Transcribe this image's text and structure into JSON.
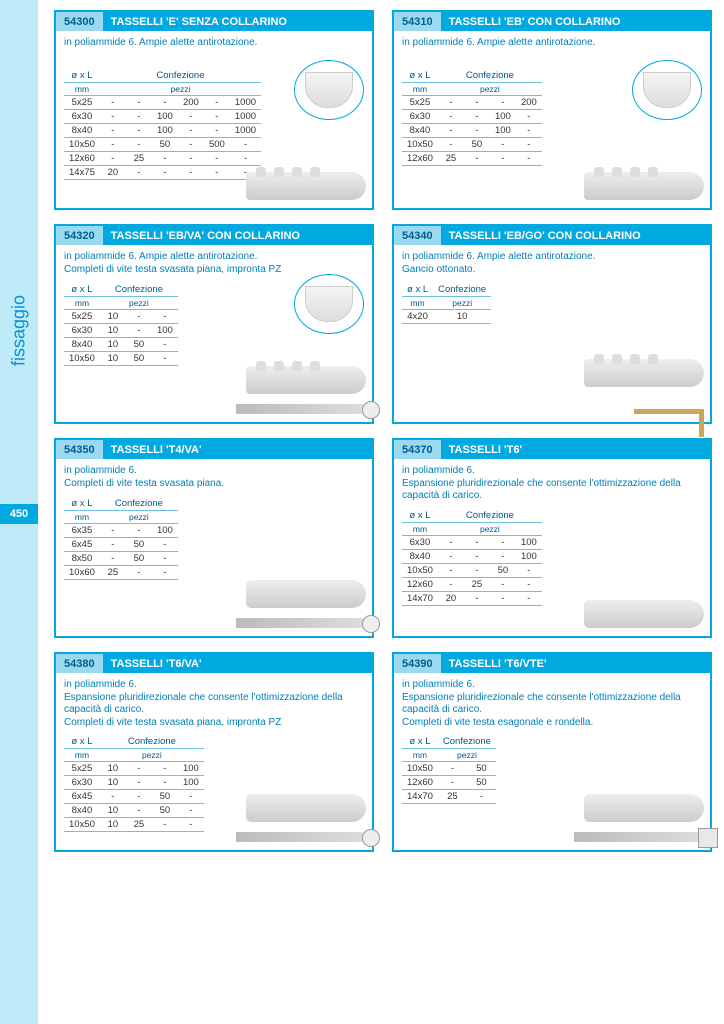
{
  "sidebar": {
    "label": "fissaggio",
    "page_number": "450"
  },
  "colors": {
    "accent": "#00a9e0",
    "panel": "#bfeaf7",
    "text_accent": "#0080b8",
    "border": "#6fbfe0"
  },
  "typography": {
    "body_fontsize": 10,
    "header_fontsize": 11,
    "table_fontsize": 9.5
  },
  "common": {
    "size_header": "ø x L",
    "size_unit": "mm",
    "pack_header": "Confezione",
    "pack_unit": "pezzi"
  },
  "cards": [
    {
      "code": "54300",
      "title": "TASSELLI 'E' SENZA COLLARINO",
      "desc": "in poliammide 6. Ampie alette antirotazione.",
      "pack_cols": 6,
      "rows": [
        {
          "s": "5x25",
          "v": [
            "-",
            "-",
            "-",
            "200",
            "-",
            "1000"
          ]
        },
        {
          "s": "6x30",
          "v": [
            "-",
            "-",
            "100",
            "-",
            "-",
            "1000"
          ]
        },
        {
          "s": "8x40",
          "v": [
            "-",
            "-",
            "100",
            "-",
            "-",
            "1000"
          ]
        },
        {
          "s": "10x50",
          "v": [
            "-",
            "-",
            "50",
            "-",
            "500",
            "-"
          ]
        },
        {
          "s": "12x60",
          "v": [
            "-",
            "25",
            "-",
            "-",
            "-",
            "-"
          ]
        },
        {
          "s": "14x75",
          "v": [
            "20",
            "-",
            "-",
            "-",
            "-",
            "-"
          ]
        }
      ],
      "show_bowl": true,
      "show_plug": true,
      "show_screw": false,
      "show_hook": false
    },
    {
      "code": "54310",
      "title": "TASSELLI 'EB' CON COLLARINO",
      "desc": "in poliammide 6. Ampie alette antirotazione.",
      "pack_cols": 4,
      "rows": [
        {
          "s": "5x25",
          "v": [
            "-",
            "-",
            "-",
            "200"
          ]
        },
        {
          "s": "6x30",
          "v": [
            "-",
            "-",
            "100",
            "-"
          ]
        },
        {
          "s": "8x40",
          "v": [
            "-",
            "-",
            "100",
            "-"
          ]
        },
        {
          "s": "10x50",
          "v": [
            "-",
            "50",
            "-",
            "-"
          ]
        },
        {
          "s": "12x60",
          "v": [
            "25",
            "-",
            "-",
            "-"
          ]
        }
      ],
      "show_bowl": true,
      "show_plug": true,
      "show_screw": false,
      "show_hook": false
    },
    {
      "code": "54320",
      "title": "TASSELLI 'EB/VA' CON COLLARINO",
      "desc": "in poliammide 6. Ampie alette antirotazione.\nCompleti di vite testa svasata piana, impronta PZ",
      "pack_cols": 3,
      "rows": [
        {
          "s": "5x25",
          "v": [
            "10",
            "-",
            "-"
          ]
        },
        {
          "s": "6x30",
          "v": [
            "10",
            "-",
            "100"
          ]
        },
        {
          "s": "8x40",
          "v": [
            "10",
            "50",
            "-"
          ]
        },
        {
          "s": "10x50",
          "v": [
            "10",
            "50",
            "-"
          ]
        }
      ],
      "show_bowl": true,
      "show_plug": true,
      "show_screw": true,
      "show_hook": false
    },
    {
      "code": "54340",
      "title": "TASSELLI 'EB/GO' CON COLLARINO",
      "desc": "in poliammide 6. Ampie alette antirotazione.\nGancio ottonato.",
      "pack_cols": 1,
      "rows": [
        {
          "s": "4x20",
          "v": [
            "10"
          ]
        }
      ],
      "show_bowl": false,
      "show_plug": true,
      "show_screw": false,
      "show_hook": true
    },
    {
      "code": "54350",
      "title": "TASSELLI 'T4/VA'",
      "desc": "in poliammide 6.\nCompleti di vite testa svasata piana.",
      "pack_cols": 3,
      "rows": [
        {
          "s": "6x35",
          "v": [
            "-",
            "-",
            "100"
          ]
        },
        {
          "s": "6x45",
          "v": [
            "-",
            "50",
            "-"
          ]
        },
        {
          "s": "8x50",
          "v": [
            "-",
            "50",
            "-"
          ]
        },
        {
          "s": "10x60",
          "v": [
            "25",
            "-",
            "-"
          ]
        }
      ],
      "show_bowl": false,
      "show_plug": true,
      "plug_type": "T",
      "show_screw": true,
      "show_hook": false
    },
    {
      "code": "54370",
      "title": "TASSELLI 'T6'",
      "desc": "in poliammide 6.\nEspansione pluridirezionale che consente l'ottimizzazione della capacità di carico.",
      "pack_cols": 4,
      "rows": [
        {
          "s": "6x30",
          "v": [
            "-",
            "-",
            "-",
            "100"
          ]
        },
        {
          "s": "8x40",
          "v": [
            "-",
            "-",
            "-",
            "100"
          ]
        },
        {
          "s": "10x50",
          "v": [
            "-",
            "-",
            "50",
            "-"
          ]
        },
        {
          "s": "12x60",
          "v": [
            "-",
            "25",
            "-",
            "-"
          ]
        },
        {
          "s": "14x70",
          "v": [
            "20",
            "-",
            "-",
            "-"
          ]
        }
      ],
      "show_bowl": false,
      "show_plug": true,
      "plug_type": "T",
      "show_screw": false,
      "show_hook": false
    },
    {
      "code": "54380",
      "title": "TASSELLI 'T6/VA'",
      "desc": "in poliammide 6.\nEspansione pluridirezionale che consente l'ottimizzazione della capacità di carico.\nCompleti di vite testa svasata piana, impronta PZ",
      "pack_cols": 4,
      "rows": [
        {
          "s": "5x25",
          "v": [
            "10",
            "-",
            "-",
            "100"
          ]
        },
        {
          "s": "6x30",
          "v": [
            "10",
            "-",
            "-",
            "100"
          ]
        },
        {
          "s": "6x45",
          "v": [
            "-",
            "-",
            "50",
            "-"
          ]
        },
        {
          "s": "8x40",
          "v": [
            "10",
            "-",
            "50",
            "-"
          ]
        },
        {
          "s": "10x50",
          "v": [
            "10",
            "25",
            "-",
            "-"
          ]
        }
      ],
      "show_bowl": false,
      "show_plug": true,
      "plug_type": "T",
      "show_screw": true,
      "show_hook": false
    },
    {
      "code": "54390",
      "title": "TASSELLI 'T6/VTE'",
      "desc": "in poliammide 6.\nEspansione pluridirezionale che consente l'ottimizzazione della capacità di carico.\nCompleti di vite testa esagonale e rondella.",
      "pack_cols": 2,
      "rows": [
        {
          "s": "10x50",
          "v": [
            "-",
            "50"
          ]
        },
        {
          "s": "12x60",
          "v": [
            "-",
            "50"
          ]
        },
        {
          "s": "14x70",
          "v": [
            "25",
            "-"
          ]
        }
      ],
      "show_bowl": false,
      "show_plug": true,
      "plug_type": "T",
      "show_screw": true,
      "screw_type": "hex",
      "show_hook": false
    }
  ]
}
